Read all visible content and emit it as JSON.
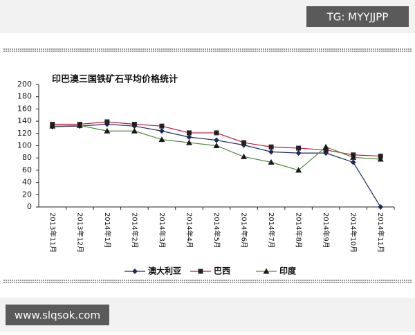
{
  "chart_data": {
    "type": "line",
    "title": "印巴澳三国铁矿石平均价格统计",
    "categories": [
      "2013年11月",
      "2013年12月",
      "2014年1月",
      "2014年2月",
      "2014年3月",
      "2014年4月",
      "2014年5月",
      "2014年6月",
      "2014年7月",
      "2014年8月",
      "2014年9月",
      "2014年10月",
      "2014年11月"
    ],
    "series": [
      {
        "name": "澳大利亚",
        "color": "#1f2a5c",
        "marker": "diamond",
        "values": [
          131,
          132,
          135,
          132,
          124,
          114,
          109,
          101,
          90,
          88,
          88,
          73,
          0
        ]
      },
      {
        "name": "巴西",
        "color": "#c0143c",
        "marker": "square",
        "values": [
          135,
          135,
          139,
          135,
          132,
          121,
          121,
          105,
          98,
          96,
          93,
          85,
          83
        ]
      },
      {
        "name": "印度",
        "color": "#4f8a3c",
        "marker": "triangle",
        "values": [
          132,
          133,
          124,
          124,
          110,
          105,
          100,
          82,
          73,
          60,
          98,
          81,
          78
        ]
      }
    ],
    "ylim": [
      0,
      200
    ],
    "yticks": [
      0,
      20,
      40,
      60,
      80,
      100,
      120,
      140,
      160,
      180,
      200
    ],
    "grid": false,
    "legend": "bottom"
  },
  "watermarks": {
    "top": "TG: MYYJJPP",
    "bottom": "www.slqsok.com"
  }
}
